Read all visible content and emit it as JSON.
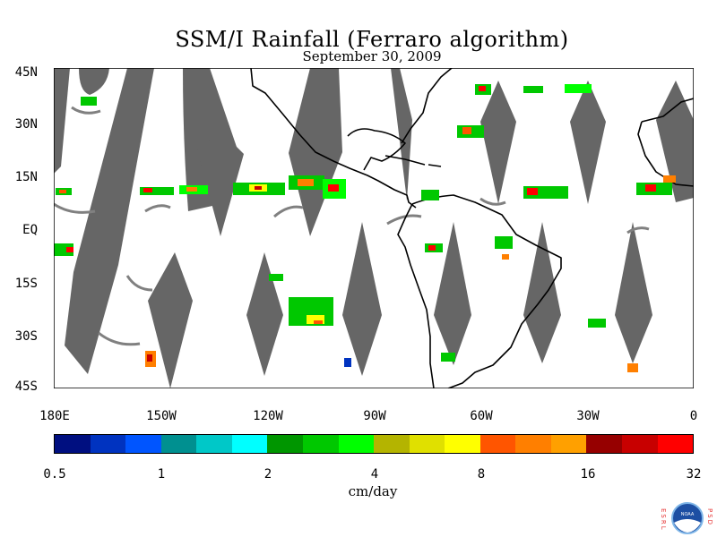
{
  "title": "SSM/I Rainfall (Ferraro algorithm)",
  "subtitle": "September 30, 2009",
  "lat_labels": [
    "45N",
    "30N",
    "15N",
    "EQ",
    "15S",
    "30S",
    "45S"
  ],
  "lon_labels": [
    "180E",
    "150W",
    "120W",
    "90W",
    "60W",
    "30W",
    "0"
  ],
  "colorbar": {
    "colors": [
      "#000f80",
      "#0033c0",
      "#0055ff",
      "#009090",
      "#00c8c8",
      "#00ffff",
      "#009600",
      "#00c800",
      "#00ff00",
      "#b4b400",
      "#e0e000",
      "#ffff00",
      "#ff5500",
      "#ff7f00",
      "#ffa000",
      "#960000",
      "#c80000",
      "#ff0000"
    ],
    "tick_labels": [
      "0.5",
      "1",
      "2",
      "4",
      "8",
      "16",
      "32"
    ],
    "units": "cm/day"
  },
  "chart_data": {
    "type": "heatmap",
    "title": "SSM/I Rainfall (Ferraro algorithm)",
    "subtitle": "September 30, 2009",
    "xlabel": "",
    "ylabel": "",
    "xlim": [
      -180,
      0
    ],
    "ylim": [
      -45,
      45
    ],
    "x_ticks": [
      "180E",
      "150W",
      "120W",
      "90W",
      "60W",
      "30W",
      "0"
    ],
    "y_ticks": [
      "45N",
      "30N",
      "15N",
      "EQ",
      "15S",
      "30S",
      "45S"
    ],
    "color_scale": "log",
    "color_levels_cm_per_day": [
      0.5,
      1,
      2,
      4,
      8,
      16,
      32
    ],
    "colorbar_label": "cm/day",
    "no_data_color": "#666666",
    "rain_features": [
      {
        "lon": -162,
        "lat": 11,
        "intensity_cm_day": 8
      },
      {
        "lon": -140,
        "lat": 11,
        "intensity_cm_day": 16
      },
      {
        "lon": -121,
        "lat": 12,
        "intensity_cm_day": 16
      },
      {
        "lon": -108,
        "lat": 13,
        "intensity_cm_day": 8
      },
      {
        "lon": -100,
        "lat": 12,
        "intensity_cm_day": 16
      },
      {
        "lon": -104,
        "lat": -26,
        "intensity_cm_day": 8
      },
      {
        "lon": -48,
        "lat": 10,
        "intensity_cm_day": 32
      },
      {
        "lon": -15,
        "lat": 11,
        "intensity_cm_day": 32
      },
      {
        "lon": -62,
        "lat": 38,
        "intensity_cm_day": 8
      }
    ]
  },
  "logo": {
    "left_letters": "ESRL",
    "right_letters": "PSD",
    "emblem": "NOAA"
  }
}
